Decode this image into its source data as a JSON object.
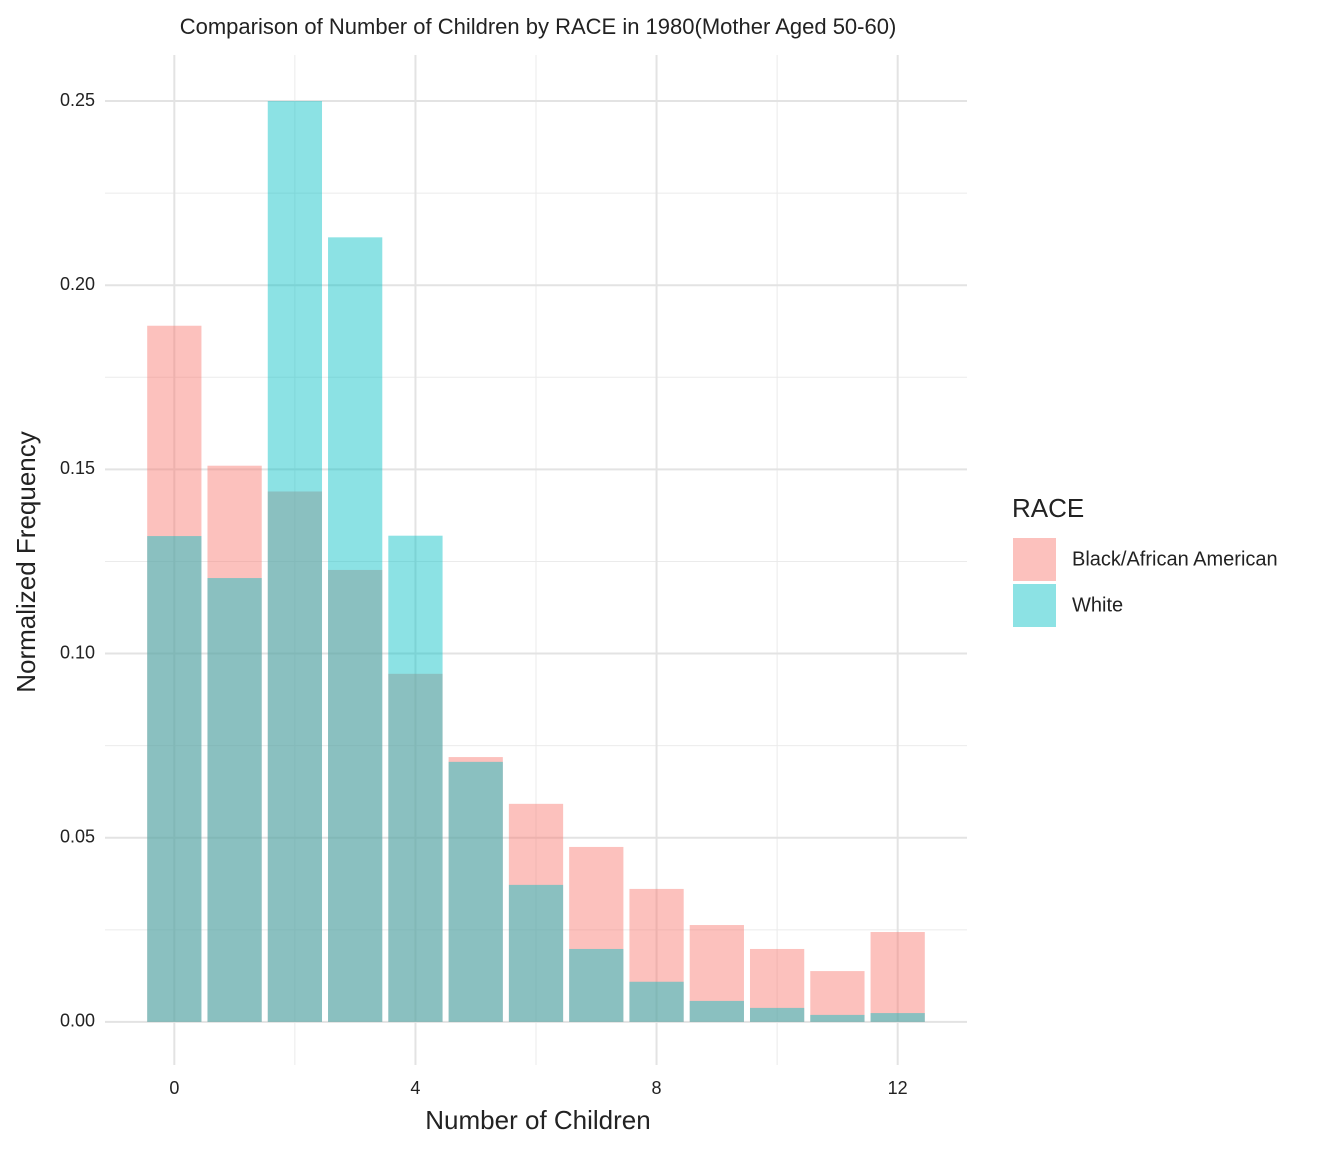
{
  "chart_data": {
    "type": "bar",
    "title": "Comparison of Number of Children by RACE in 1980(Mother Aged 50-60)",
    "x_label": "Number of Children",
    "y_label": "Normalized Frequency",
    "legend_title": "RACE",
    "x": [
      0,
      1,
      2,
      3,
      4,
      5,
      6,
      7,
      8,
      9,
      10,
      11,
      12
    ],
    "series": [
      {
        "name": "Black/African American",
        "color": "#F8766D",
        "values": [
          0.189,
          0.151,
          0.144,
          0.1227,
          0.0945,
          0.0719,
          0.0592,
          0.0475,
          0.0361,
          0.0263,
          0.0198,
          0.0138,
          0.0244
        ]
      },
      {
        "name": "White",
        "color": "#00BFC4",
        "values": [
          0.1319,
          0.1205,
          0.25,
          0.213,
          0.132,
          0.0706,
          0.0372,
          0.0198,
          0.0109,
          0.0057,
          0.0038,
          0.0019,
          0.0024
        ]
      }
    ],
    "xlim": [
      -1.15,
      13.15
    ],
    "ylim": [
      -0.0117,
      0.2625
    ],
    "xticks": [
      0,
      4,
      8,
      12
    ],
    "yticks": [
      {
        "value": 0,
        "label": "0.00"
      },
      {
        "value": 0.05,
        "label": "0.05"
      },
      {
        "value": 0.1,
        "label": "0.10"
      },
      {
        "value": 0.15,
        "label": "0.15"
      },
      {
        "value": 0.2,
        "label": "0.20"
      },
      {
        "value": 0.25,
        "label": "0.25"
      }
    ],
    "grid": true,
    "legend_position": "right"
  }
}
